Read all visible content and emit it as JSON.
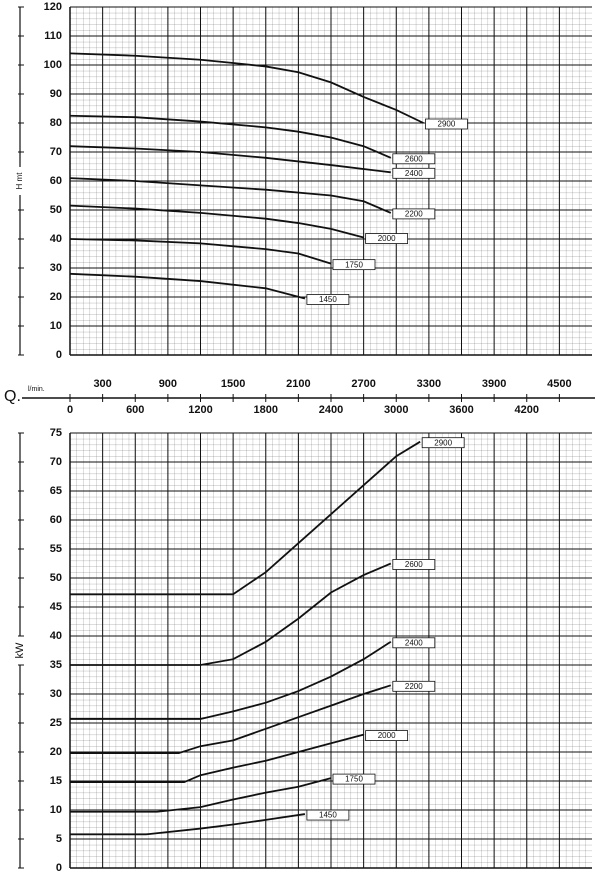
{
  "chart_data": [
    {
      "type": "line",
      "ylabel": "H mt",
      "xlabel": "Q.",
      "xunit": "l/min.",
      "color": "#111111",
      "grid": true,
      "xlim": [
        0,
        4800
      ],
      "xticks": [
        0,
        300,
        600,
        900,
        1200,
        1500,
        1800,
        2100,
        2400,
        2700,
        3000,
        3300,
        3600,
        3900,
        4200,
        4500
      ],
      "ylim": [
        0,
        120
      ],
      "yticks": [
        0,
        10,
        20,
        30,
        40,
        50,
        60,
        70,
        80,
        90,
        100,
        110,
        120
      ],
      "series": [
        {
          "name": "2900",
          "x": [
            0,
            600,
            1200,
            1500,
            1800,
            2100,
            2400,
            2700,
            3000,
            3250
          ],
          "values": [
            104,
            103.2,
            101.8,
            100.7,
            99.5,
            97.5,
            94,
            89,
            84.5,
            80
          ]
        },
        {
          "name": "2600",
          "x": [
            0,
            600,
            1200,
            1800,
            2100,
            2400,
            2700,
            2950
          ],
          "values": [
            82.5,
            82,
            80.5,
            78.5,
            77,
            75,
            72,
            68
          ]
        },
        {
          "name": "2400",
          "x": [
            0,
            600,
            1200,
            1800,
            2400,
            2950
          ],
          "values": [
            72,
            71.2,
            70,
            68,
            65.5,
            63
          ]
        },
        {
          "name": "2200",
          "x": [
            0,
            600,
            1200,
            1800,
            2400,
            2700,
            2950
          ],
          "values": [
            61,
            60,
            58.5,
            57,
            55,
            53,
            49
          ]
        },
        {
          "name": "2000",
          "x": [
            0,
            600,
            1200,
            1800,
            2100,
            2400,
            2700
          ],
          "values": [
            51.5,
            50.5,
            49,
            47,
            45.5,
            43.5,
            40.5
          ]
        },
        {
          "name": "1750",
          "x": [
            0,
            600,
            1200,
            1800,
            2100,
            2400
          ],
          "values": [
            40,
            39.5,
            38.5,
            36.5,
            35,
            31.5
          ]
        },
        {
          "name": "1450",
          "x": [
            0,
            600,
            1200,
            1800,
            2160
          ],
          "values": [
            28,
            27,
            25.5,
            23,
            19.5
          ]
        }
      ]
    },
    {
      "type": "line",
      "ylabel": "kW",
      "color": "#111111",
      "grid": true,
      "xlim": [
        0,
        4800
      ],
      "ylim": [
        0,
        75
      ],
      "yticks": [
        0,
        5,
        10,
        15,
        20,
        25,
        30,
        35,
        40,
        45,
        50,
        55,
        60,
        65,
        70,
        75
      ],
      "series": [
        {
          "name": "2900",
          "x": [
            0,
            1500,
            1800,
            2100,
            2400,
            2700,
            3000,
            3220
          ],
          "values": [
            47.2,
            47.2,
            51,
            56,
            61,
            66,
            71,
            73.5
          ]
        },
        {
          "name": "2600",
          "x": [
            0,
            1200,
            1500,
            1800,
            2100,
            2400,
            2700,
            2950
          ],
          "values": [
            35,
            35,
            36,
            39,
            43,
            47.5,
            50.5,
            52.5
          ]
        },
        {
          "name": "2400",
          "x": [
            0,
            1200,
            1500,
            1800,
            2100,
            2400,
            2700,
            2950
          ],
          "values": [
            25.7,
            25.7,
            27,
            28.5,
            30.5,
            33,
            36,
            39
          ]
        },
        {
          "name": "2200",
          "x": [
            0,
            1000,
            1200,
            1500,
            1800,
            2100,
            2400,
            2700,
            2950
          ],
          "values": [
            19.8,
            19.8,
            21,
            22,
            24,
            26,
            28,
            30,
            31.5
          ]
        },
        {
          "name": "2000",
          "x": [
            0,
            1050,
            1200,
            1500,
            1800,
            2100,
            2400,
            2700
          ],
          "values": [
            14.8,
            14.8,
            16,
            17.3,
            18.5,
            20,
            21.5,
            23
          ]
        },
        {
          "name": "1750",
          "x": [
            0,
            800,
            1200,
            1500,
            1800,
            2100,
            2400
          ],
          "values": [
            9.7,
            9.7,
            10.5,
            11.8,
            13,
            14,
            15.5
          ]
        },
        {
          "name": "1450",
          "x": [
            0,
            700,
            1200,
            1500,
            1800,
            2160
          ],
          "values": [
            5.8,
            5.8,
            6.8,
            7.5,
            8.3,
            9.3
          ]
        }
      ]
    }
  ]
}
